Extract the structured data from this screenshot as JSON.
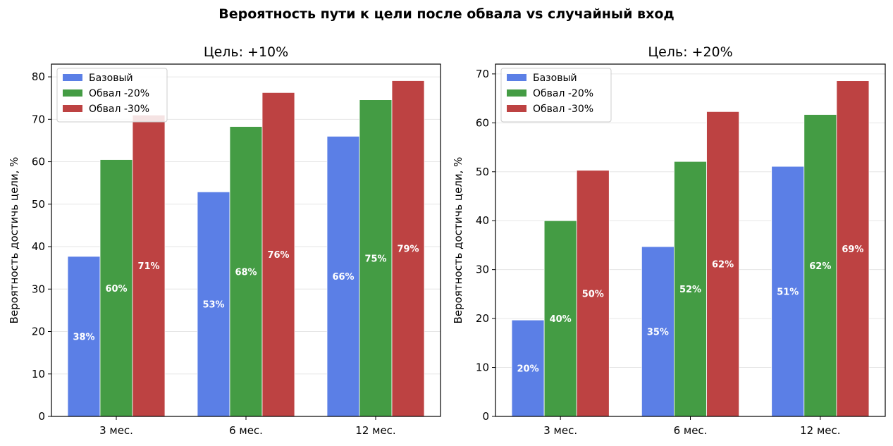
{
  "suptitle": "Вероятность пути к цели после обвала vs случайный вход",
  "colors": {
    "base": "#5b7fe6",
    "drop20": "#449c44",
    "drop30": "#bd4242"
  },
  "chart_data": [
    {
      "type": "bar",
      "title": "Цель: +10%",
      "ylabel": "Вероятность достичь цели, %",
      "xlabel": "",
      "categories": [
        "3 мес.",
        "6 мес.",
        "12 мес."
      ],
      "ylim": [
        0,
        83
      ],
      "yticks": [
        0,
        10,
        20,
        30,
        40,
        50,
        60,
        70,
        80
      ],
      "grid": "y",
      "legend": "top-left",
      "series": [
        {
          "name": "Базовый",
          "values": [
            37.7,
            52.9,
            66.0
          ],
          "labels": [
            "38%",
            "53%",
            "66%"
          ]
        },
        {
          "name": "Обвал -20%",
          "values": [
            60.5,
            68.3,
            74.6
          ],
          "labels": [
            "60%",
            "68%",
            "75%"
          ]
        },
        {
          "name": "Обвал -30%",
          "values": [
            71.0,
            76.3,
            79.1
          ],
          "labels": [
            "71%",
            "76%",
            "79%"
          ]
        }
      ]
    },
    {
      "type": "bar",
      "title": "Цель: +20%",
      "ylabel": "Вероятность достичь цели, %",
      "xlabel": "",
      "categories": [
        "3 мес.",
        "6 мес.",
        "12 мес."
      ],
      "ylim": [
        0,
        72
      ],
      "yticks": [
        0,
        10,
        20,
        30,
        40,
        50,
        60,
        70
      ],
      "grid": "y",
      "legend": "top-left",
      "series": [
        {
          "name": "Базовый",
          "values": [
            19.7,
            34.7,
            51.1
          ],
          "labels": [
            "20%",
            "35%",
            "51%"
          ]
        },
        {
          "name": "Обвал -20%",
          "values": [
            40.0,
            52.1,
            61.7
          ],
          "labels": [
            "40%",
            "52%",
            "62%"
          ]
        },
        {
          "name": "Обвал -30%",
          "values": [
            50.3,
            62.3,
            68.6
          ],
          "labels": [
            "50%",
            "62%",
            "69%"
          ]
        }
      ]
    }
  ]
}
